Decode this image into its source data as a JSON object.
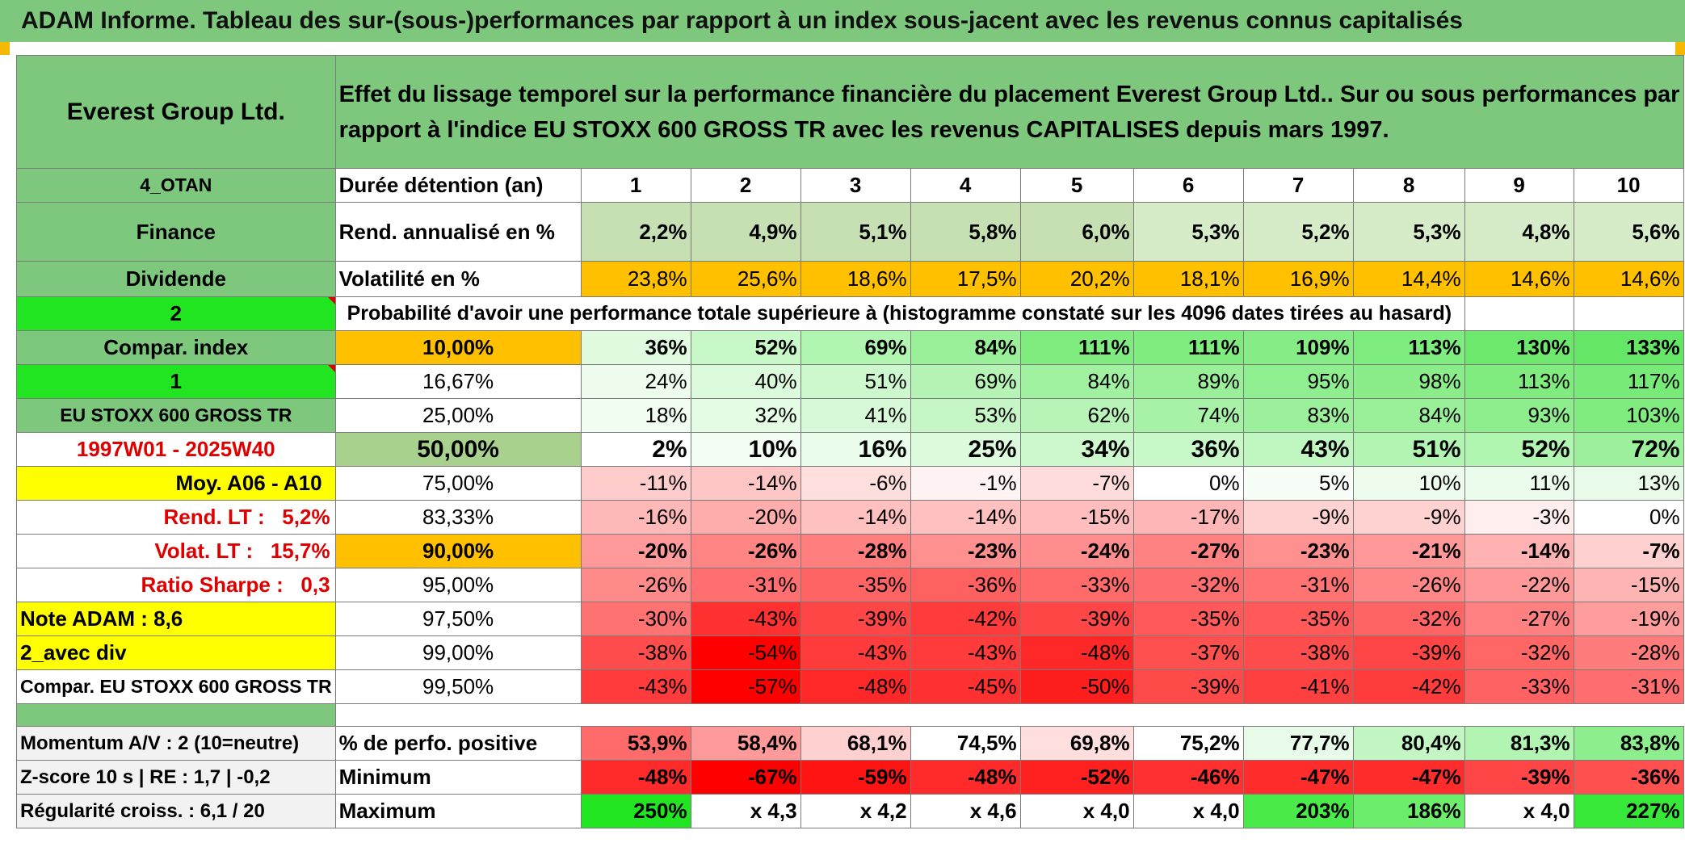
{
  "title": "ADAM Informe. Tableau des sur-(sous-)performances par rapport à un index sous-jacent avec les revenus connus capitalisés",
  "company": "Everest Group Ltd.",
  "description": "Effet du lissage temporel sur la performance financière du placement Everest Group Ltd.. Sur ou sous performances par rapport à l'indice EU STOXX 600 GROSS TR avec les revenus CAPITALISES depuis mars 1997.",
  "side": {
    "category": "4_OTAN",
    "sector": "Finance",
    "dividend": "Dividende",
    "selector_value": "2",
    "compar_index_label": "Compar. index",
    "selector_value2": "1",
    "index_name": "EU STOXX 600 GROSS TR",
    "period": "1997W01 - 2025W40",
    "moy_label": "Moy. A06 - A10",
    "rend_lt": "Rend. LT :   5,2%",
    "volat_lt": "Volat. LT :   15,7%",
    "sharpe": "Ratio Sharpe :   0,3",
    "note": "Note ADAM : 8,6",
    "avec_div": "2_avec div",
    "compar_name": "Compar. EU STOXX 600 GROSS TR",
    "momentum": "Momentum A/V : 2 (10=neutre)",
    "zscore": "Z-score 10 s | RE : 1,7 | -0,2",
    "regularite": "Régularité croiss. : 6,1 / 20"
  },
  "duration_label": "Durée détention (an)",
  "years": [
    "1",
    "2",
    "3",
    "4",
    "5",
    "6",
    "7",
    "8",
    "9",
    "10"
  ],
  "rend_label": "Rend. annualisé en %",
  "rend": [
    "2,2%",
    "4,9%",
    "5,1%",
    "5,8%",
    "6,0%",
    "5,3%",
    "5,2%",
    "5,3%",
    "4,8%",
    "5,6%"
  ],
  "vol_label": "Volatilité en %",
  "vol": [
    "23,8%",
    "25,6%",
    "18,6%",
    "17,5%",
    "20,2%",
    "18,1%",
    "16,9%",
    "14,4%",
    "14,6%",
    "14,6%"
  ],
  "prob_label": "Probabilité d'avoir une performance totale supérieure à (histogramme constaté sur les 4096 dates tirées au hasard)",
  "percentiles": [
    {
      "level": "10,00%",
      "values": [
        "36%",
        "52%",
        "69%",
        "84%",
        "111%",
        "111%",
        "109%",
        "113%",
        "130%",
        "133%"
      ],
      "bold": true
    },
    {
      "level": "16,67%",
      "values": [
        "24%",
        "40%",
        "51%",
        "69%",
        "84%",
        "89%",
        "95%",
        "98%",
        "113%",
        "117%"
      ],
      "bold": false
    },
    {
      "level": "25,00%",
      "values": [
        "18%",
        "32%",
        "41%",
        "53%",
        "62%",
        "74%",
        "83%",
        "84%",
        "93%",
        "103%"
      ],
      "bold": false
    },
    {
      "level": "50,00%",
      "values": [
        "2%",
        "10%",
        "16%",
        "25%",
        "34%",
        "36%",
        "43%",
        "51%",
        "52%",
        "72%"
      ],
      "bold": true
    },
    {
      "level": "75,00%",
      "values": [
        "-11%",
        "-14%",
        "-6%",
        "-1%",
        "-7%",
        "0%",
        "5%",
        "10%",
        "11%",
        "13%"
      ],
      "bold": false
    },
    {
      "level": "83,33%",
      "values": [
        "-16%",
        "-20%",
        "-14%",
        "-14%",
        "-15%",
        "-17%",
        "-9%",
        "-9%",
        "-3%",
        "0%"
      ],
      "bold": false
    },
    {
      "level": "90,00%",
      "values": [
        "-20%",
        "-26%",
        "-28%",
        "-23%",
        "-24%",
        "-27%",
        "-23%",
        "-21%",
        "-14%",
        "-7%"
      ],
      "bold": true
    },
    {
      "level": "95,00%",
      "values": [
        "-26%",
        "-31%",
        "-35%",
        "-36%",
        "-33%",
        "-32%",
        "-31%",
        "-26%",
        "-22%",
        "-15%"
      ],
      "bold": false
    },
    {
      "level": "97,50%",
      "values": [
        "-30%",
        "-43%",
        "-39%",
        "-42%",
        "-39%",
        "-35%",
        "-35%",
        "-32%",
        "-27%",
        "-19%"
      ],
      "bold": false
    },
    {
      "level": "99,00%",
      "values": [
        "-38%",
        "-54%",
        "-43%",
        "-43%",
        "-48%",
        "-37%",
        "-38%",
        "-39%",
        "-32%",
        "-28%"
      ],
      "bold": false
    },
    {
      "level": "99,50%",
      "values": [
        "-43%",
        "-57%",
        "-48%",
        "-45%",
        "-50%",
        "-39%",
        "-41%",
        "-42%",
        "-33%",
        "-31%"
      ],
      "bold": false
    }
  ],
  "positive_label": "% de perfo. positive",
  "positive": [
    "53,9%",
    "58,4%",
    "68,1%",
    "74,5%",
    "69,8%",
    "75,2%",
    "77,7%",
    "80,4%",
    "81,3%",
    "83,8%"
  ],
  "minimum_label": "Minimum",
  "minimum": [
    "-48%",
    "-67%",
    "-59%",
    "-48%",
    "-52%",
    "-46%",
    "-47%",
    "-47%",
    "-39%",
    "-36%"
  ],
  "maximum_label": "Maximum",
  "maximum": [
    "250%",
    "x 4,3",
    "x 4,2",
    "x 4,6",
    "x 4,0",
    "x 4,0",
    "203%",
    "186%",
    "x 4,0",
    "227%"
  ],
  "colors": {
    "header_green": "#7dc87d",
    "lime": "#22e522",
    "yellow": "#ffff00",
    "orange": "#ffc000",
    "red_text": "#e00000",
    "rend_shades": [
      "#c6e0b4",
      "#c6e0b4",
      "#c6e0b4",
      "#c6e0b4",
      "#c6e0b4",
      "#d6ecc9",
      "#d6ecc9",
      "#d6ecc9",
      "#d6ecc9",
      "#d6ecc9"
    ],
    "vol_shades": [
      "#ffc000",
      "#ffc000",
      "#ffc000",
      "#ffc000",
      "#ffc000",
      "#ffc000",
      "#ffc000",
      "#ffc000",
      "#ffc000",
      "#ffc000"
    ],
    "percentile_shades": [
      [
        "#e0fbe0",
        "#c8f8c8",
        "#b0f5b0",
        "#99f099",
        "#80ec80",
        "#80ec80",
        "#86ed86",
        "#7eec7e",
        "#6de86d",
        "#66e666"
      ],
      [
        "#eefcee",
        "#dcfadc",
        "#cdf8cd",
        "#b6f4b6",
        "#a0f1a0",
        "#99f099",
        "#8fee8f",
        "#8aed8a",
        "#80ec80",
        "#78ea78"
      ],
      [
        "#f2fdf2",
        "#e4fbe4",
        "#d8f9d8",
        "#c6f6c6",
        "#b8f4b8",
        "#a8f2a8",
        "#9cf09c",
        "#99f099",
        "#8eee8e",
        "#80ec80"
      ],
      [
        "#ffffff",
        "#f4fdf4",
        "#eafcea",
        "#dcfadc",
        "#cdf8cd",
        "#c8f8c8",
        "#c0f6c0",
        "#b2f4b2",
        "#b0f5b0",
        "#9cf09c"
      ],
      [
        "#ffcccc",
        "#ffc6c6",
        "#ffdede",
        "#fff3f3",
        "#ffdcdc",
        "#ffffff",
        "#f7fef7",
        "#eefcee",
        "#ecfcec",
        "#e8fbe8"
      ],
      [
        "#ffb8b8",
        "#ffacac",
        "#ffc0c0",
        "#ffc0c0",
        "#ffbdbd",
        "#ffb6b6",
        "#ffd2d2",
        "#ffd2d2",
        "#ffeeee",
        "#ffffff"
      ],
      [
        "#ff9a9a",
        "#ff8484",
        "#ff7f7f",
        "#ff9090",
        "#ff8d8d",
        "#ff8282",
        "#ff9090",
        "#ff9898",
        "#ffb2b2",
        "#ffd0d0"
      ],
      [
        "#ff8a8a",
        "#ff6f6f",
        "#ff6464",
        "#ff6060",
        "#ff6b6b",
        "#ff6e6e",
        "#ff7373",
        "#ff8787",
        "#ff9898",
        "#ffb4b4"
      ],
      [
        "#ff7272",
        "#ff3030",
        "#ff4646",
        "#ff3b3b",
        "#ff4646",
        "#ff5959",
        "#ff5959",
        "#ff6464",
        "#ff8080",
        "#ff9c9c"
      ],
      [
        "#ff4d4d",
        "#ff0000",
        "#ff3b3b",
        "#ff3b3b",
        "#ff2828",
        "#ff5050",
        "#ff4c4c",
        "#ff4646",
        "#ff6767",
        "#ff7c7c"
      ],
      [
        "#ff3b3b",
        "#ff0000",
        "#ff2828",
        "#ff3030",
        "#ff1e1e",
        "#ff4a4a",
        "#ff4040",
        "#ff3c3c",
        "#ff6262",
        "#ff6e6e"
      ]
    ],
    "positive_shades": [
      "#ff6b6b",
      "#ff9a9a",
      "#ffd0d0",
      "#ffffff",
      "#ffdede",
      "#ffffff",
      "#e8fbe8",
      "#c4f6c4",
      "#b2f4b2",
      "#8cee8c"
    ],
    "minimum_shades": [
      "#ff2a2a",
      "#ff0000",
      "#ff1414",
      "#ff2a2a",
      "#ff2020",
      "#ff3030",
      "#ff2c2c",
      "#ff2c2c",
      "#ff4646",
      "#ff5050"
    ],
    "maximum_shades": [
      "#22e522",
      "#ffffff",
      "#ffffff",
      "#ffffff",
      "#ffffff",
      "#ffffff",
      "#4aea4a",
      "#6ced6c",
      "#ffffff",
      "#38e838"
    ],
    "percentile_level_shades": [
      "#ffc000",
      "#ffffff",
      "#ffffff",
      "#a9d18e",
      "#ffffff",
      "#ffffff",
      "#ffc000",
      "#ffffff",
      "#ffffff",
      "#ffffff",
      "#ffffff"
    ]
  }
}
